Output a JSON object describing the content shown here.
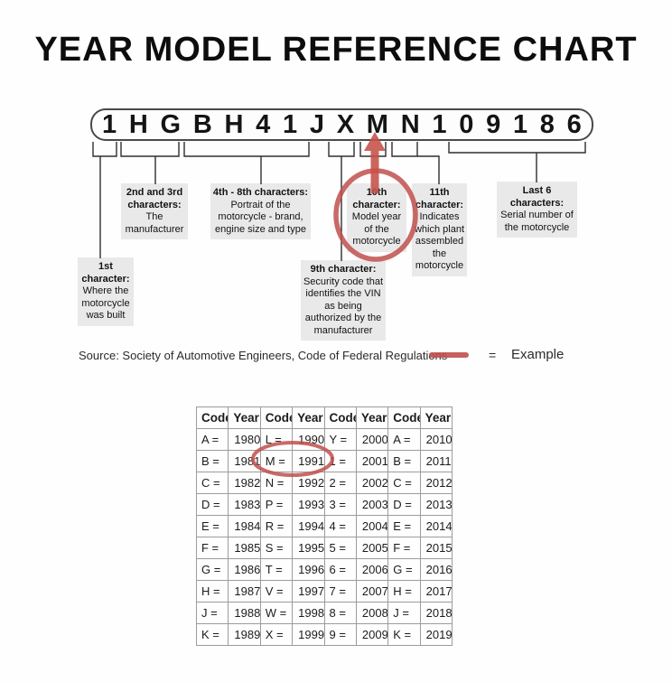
{
  "title": "YEAR MODEL REFERENCE CHART",
  "vin": {
    "characters": [
      "1",
      "H",
      "G",
      "B",
      "H",
      "4",
      "1",
      "J",
      "X",
      "M",
      "N",
      "1",
      "0",
      "9",
      "1",
      "8",
      "6"
    ]
  },
  "callouts": [
    {
      "title": "1st character:",
      "body": "Where the motorcycle was built"
    },
    {
      "title": "2nd and 3rd characters:",
      "body": "The manufacturer"
    },
    {
      "title": "4th - 8th characters:",
      "body": "Portrait of the motorcycle - brand, engine size and type"
    },
    {
      "title": "9th character:",
      "body": "Security code that identifies the VIN as being authorized by the manufacturer"
    },
    {
      "title": "10th character:",
      "body": "Model year of the motorcycle"
    },
    {
      "title": "11th character:",
      "body": "Indicates which plant assembled the motorcycle"
    },
    {
      "title": "Last 6 characters:",
      "body": "Serial number of the motorcycle"
    }
  ],
  "source": "Source:  Society of Automotive Engineers, Code of Federal Regulations",
  "legend": {
    "equals": "=",
    "label": "Example"
  },
  "table": {
    "headers": [
      "Code",
      "Year",
      "Code",
      "Year",
      "Code",
      "Year",
      "Code",
      "Year"
    ],
    "rows": [
      [
        "A =",
        "1980",
        "L =",
        "1990",
        "Y =",
        "2000",
        "A =",
        "2010"
      ],
      [
        "B =",
        "1981",
        "M =",
        "1991",
        "1 =",
        "2001",
        "B =",
        "2011"
      ],
      [
        "C =",
        "1982",
        "N =",
        "1992",
        "2 =",
        "2002",
        "C =",
        "2012"
      ],
      [
        "D =",
        "1983",
        "P =",
        "1993",
        "3 =",
        "2003",
        "D =",
        "2013"
      ],
      [
        "E =",
        "1984",
        "R =",
        "1994",
        "4 =",
        "2004",
        "E =",
        "2014"
      ],
      [
        "F =",
        "1985",
        "S =",
        "1995",
        "5 =",
        "2005",
        "F =",
        "2015"
      ],
      [
        "G =",
        "1986",
        "T =",
        "1996",
        "6 =",
        "2006",
        "G =",
        "2016"
      ],
      [
        "H =",
        "1987",
        "V =",
        "1997",
        "7 =",
        "2007",
        "H =",
        "2017"
      ],
      [
        "J =",
        "1988",
        "W =",
        "1998",
        "8 =",
        "2008",
        "J =",
        "2018"
      ],
      [
        "K =",
        "1989",
        "X =",
        "1999",
        "9 =",
        "2009",
        "K =",
        "2019"
      ]
    ],
    "highlighted_cell": "M = 1991"
  },
  "colors": {
    "accent_red": "#c0504d",
    "callout_bg": "#e9e9e9",
    "line": "#2e2e2e"
  }
}
